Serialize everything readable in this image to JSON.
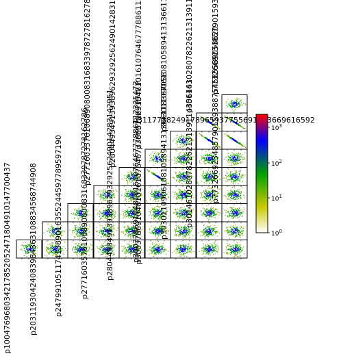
{
  "chart_data": {
    "type": "scatter",
    "subtype": "corner-plot-2d-histograms",
    "variables": [
      "p1004769680342178520524718049101477004​37",
      "p203119304240839843631088345687449​08",
      "p247991051174138901635524459778959719​0",
      "p277160357610689080083168339787278162786",
      "p280449349139389629329256249014283142951",
      "p300378691048101610764677788611233547​3",
      "p303011090610810589413136611836705​6",
      "p301461028078226213139114456143",
      "p311178824917055659275538887545855890​53620",
      "p773266923485790159388754585589053620"
    ],
    "shown_labels": {
      "bottom": [
        "p1004769680342178520524718049101477004​37",
        "p2031193042408398436310883456874490​8",
        "p2479910511741389016355244597789597190",
        "p2771603576106890800831683397872781627​86",
        "p2804493491393896293292562490142831429​51",
        "p3003786910481016107646777886112335473"
      ],
      "diag_top": [
        "p2771603576106890800831683397872781627​86",
        "p2804493491393896293292562490142831429​51",
        "p3003786910481016107646777886112335473",
        "p3030110906108105894131366118367056",
        "p3014610280782262131391144561​43",
        "p7732669234857901593887545855890536​20"
      ],
      "overlap_label": "p3117738249178965937755691363669616592"
    },
    "n_columns": 9,
    "correlated_cells": [
      {
        "row": 5,
        "col": 4
      },
      {
        "row": 5,
        "col": 6
      },
      {
        "row": 8,
        "col": 6
      },
      {
        "row": 7,
        "col": 7
      },
      {
        "row": 9,
        "col": 7
      },
      {
        "row": 9,
        "col": 8
      },
      {
        "row": 3,
        "col": 6
      },
      {
        "row": 4,
        "col": 7
      }
    ],
    "colorbar": {
      "scale": "log",
      "min": 1,
      "max": 1000,
      "ticks": [
        "10^0",
        "10^1",
        "10^2",
        "10^3"
      ],
      "colors": [
        "#ffffff",
        "#c8c800",
        "#00a000",
        "#0000ff",
        "#ff0000"
      ]
    }
  }
}
